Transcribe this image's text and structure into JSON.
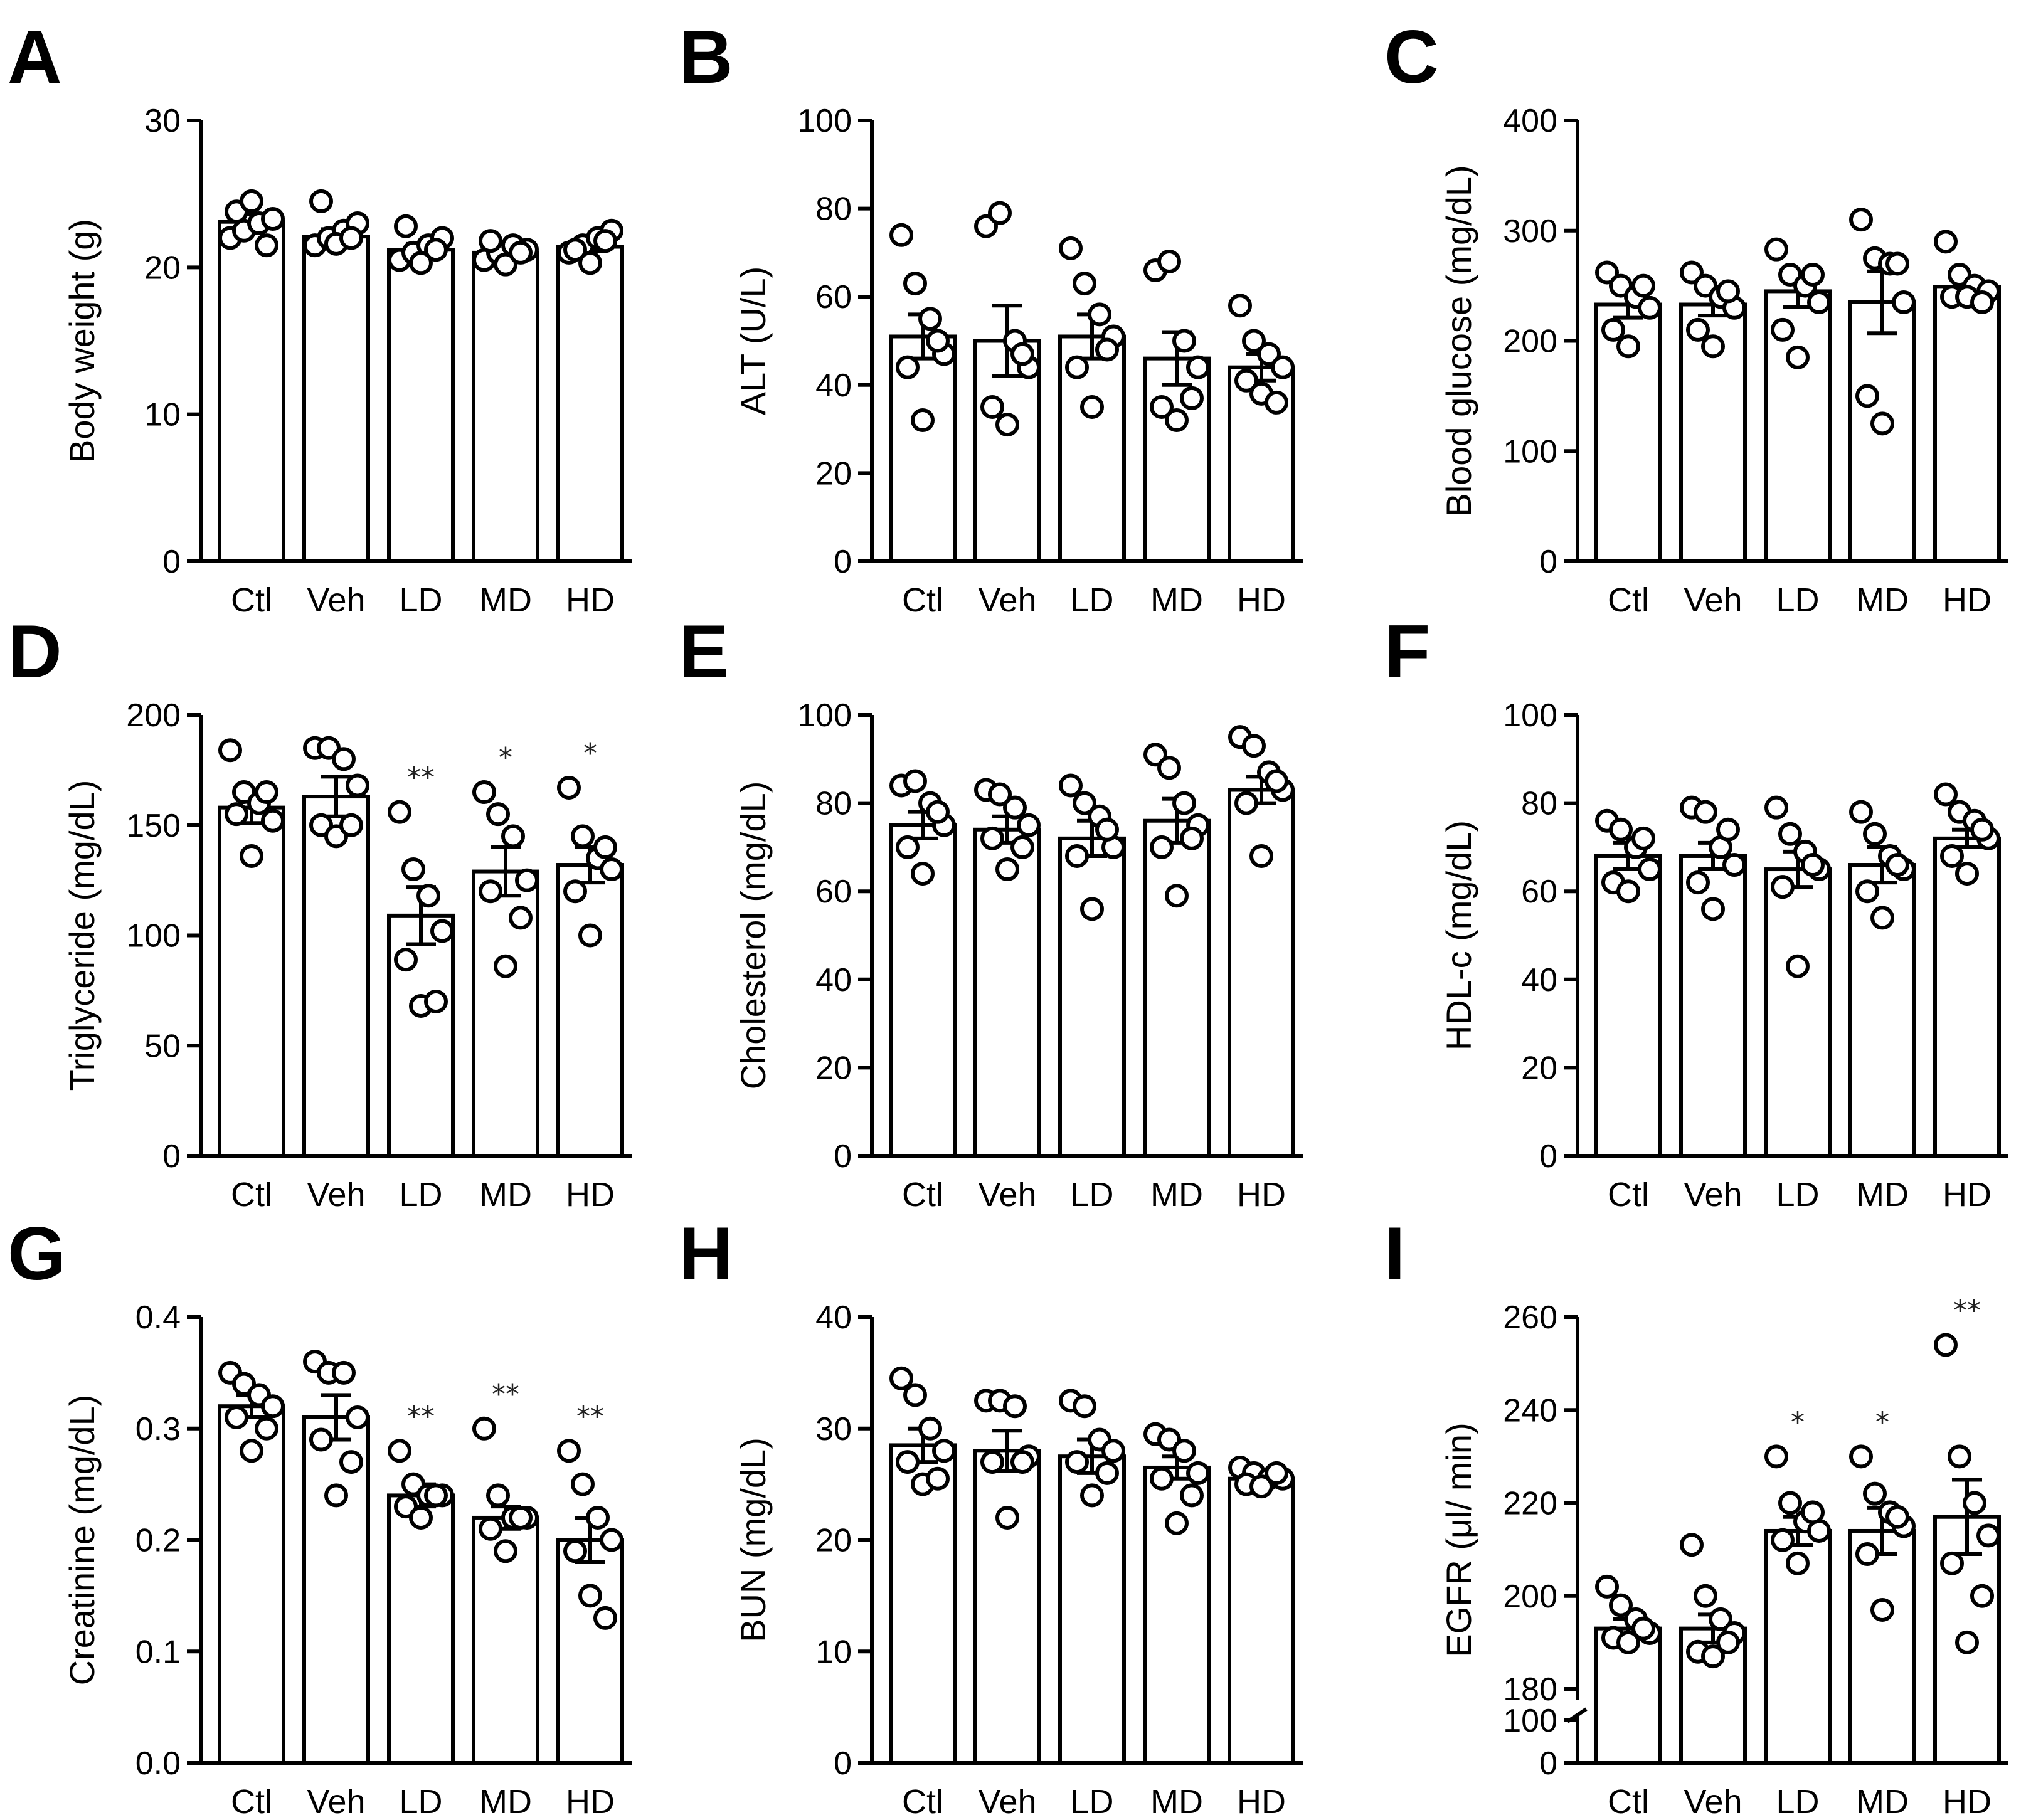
{
  "chart_data": [
    {
      "panel": "A",
      "type": "bar",
      "title": "",
      "categories": [
        "Ctl",
        "Veh",
        "LD",
        "MD",
        "HD"
      ],
      "ylabel": "Body weight (g)",
      "ylim": [
        0,
        30
      ],
      "yticks": [
        0,
        10,
        20,
        30
      ],
      "means": [
        23.1,
        22.1,
        21.2,
        21.0,
        21.4
      ],
      "sem": [
        0.5,
        0.5,
        0.4,
        0.3,
        0.3
      ],
      "points": [
        [
          22.0,
          22.5,
          23.0,
          23.3,
          23.8,
          24.5,
          21.5
        ],
        [
          21.5,
          22.0,
          22.5,
          23.0,
          24.5,
          21.6,
          22.0
        ],
        [
          20.5,
          21.0,
          21.5,
          22.0,
          22.8,
          20.3,
          21.2
        ],
        [
          20.5,
          21.0,
          21.5,
          21.2,
          21.8,
          20.2,
          21.0
        ],
        [
          21.0,
          21.5,
          22.0,
          22.5,
          21.2,
          20.3,
          21.8
        ]
      ],
      "annotations": [
        "",
        "",
        "",
        "",
        ""
      ]
    },
    {
      "panel": "B",
      "type": "bar",
      "title": "",
      "categories": [
        "Ctl",
        "Veh",
        "LD",
        "MD",
        "HD"
      ],
      "ylabel": "ALT (U/L)",
      "ylim": [
        0,
        100
      ],
      "yticks": [
        0,
        20,
        40,
        60,
        80,
        100
      ],
      "means": [
        51,
        50,
        51,
        46,
        44
      ],
      "sem": [
        5,
        8,
        5,
        6,
        3
      ],
      "points": [
        [
          74,
          63,
          55,
          47,
          44,
          32,
          50
        ],
        [
          76,
          79,
          50,
          44,
          35,
          31,
          47
        ],
        [
          71,
          63,
          56,
          51,
          44,
          35,
          48
        ],
        [
          66,
          68,
          50,
          44,
          35,
          32,
          37
        ],
        [
          58,
          50,
          47,
          44,
          41,
          38,
          36
        ]
      ],
      "annotations": [
        "",
        "",
        "",
        "",
        ""
      ]
    },
    {
      "panel": "C",
      "type": "bar",
      "title": "",
      "categories": [
        "Ctl",
        "Veh",
        "LD",
        "MD",
        "HD"
      ],
      "ylabel": "Blood glucose (mg/dL)",
      "ylim": [
        0,
        400
      ],
      "yticks": [
        0,
        100,
        200,
        300,
        400
      ],
      "means": [
        233,
        233,
        245,
        235,
        249
      ],
      "sem": [
        12,
        10,
        14,
        28,
        6
      ],
      "points": [
        [
          262,
          250,
          240,
          230,
          210,
          195,
          250
        ],
        [
          262,
          250,
          240,
          230,
          210,
          195,
          245
        ],
        [
          283,
          260,
          250,
          235,
          210,
          185,
          260
        ],
        [
          310,
          275,
          270,
          235,
          150,
          125,
          270
        ],
        [
          290,
          260,
          250,
          245,
          240,
          240,
          235
        ]
      ],
      "annotations": [
        "",
        "",
        "",
        "",
        ""
      ]
    },
    {
      "panel": "D",
      "type": "bar",
      "title": "",
      "categories": [
        "Ctl",
        "Veh",
        "LD",
        "MD",
        "HD"
      ],
      "ylabel": "Triglyceride (mg/dL)",
      "ylim": [
        0,
        200
      ],
      "yticks": [
        0,
        50,
        100,
        150,
        200
      ],
      "means": [
        158,
        163,
        109,
        129,
        132
      ],
      "sem": [
        7,
        9,
        13,
        11,
        8
      ],
      "points": [
        [
          184,
          165,
          160,
          152,
          155,
          136,
          165
        ],
        [
          185,
          185,
          180,
          168,
          150,
          145,
          150
        ],
        [
          156,
          130,
          118,
          102,
          89,
          68,
          70
        ],
        [
          165,
          155,
          145,
          125,
          120,
          86,
          108
        ],
        [
          167,
          145,
          135,
          130,
          120,
          100,
          140
        ]
      ],
      "annotations": [
        "",
        "",
        "**",
        "*",
        "*"
      ]
    },
    {
      "panel": "E",
      "type": "bar",
      "title": "",
      "categories": [
        "Ctl",
        "Veh",
        "LD",
        "MD",
        "HD"
      ],
      "ylabel": "Cholesterol (mg/dL)",
      "ylim": [
        0,
        100
      ],
      "yticks": [
        0,
        20,
        40,
        60,
        80,
        100
      ],
      "means": [
        75,
        74,
        72,
        76,
        83
      ],
      "sem": [
        3,
        3,
        4,
        5,
        3
      ],
      "points": [
        [
          84,
          85,
          80,
          75,
          70,
          64,
          78
        ],
        [
          83,
          82,
          79,
          75,
          72,
          65,
          70
        ],
        [
          84,
          80,
          77,
          70,
          68,
          56,
          74
        ],
        [
          91,
          88,
          80,
          75,
          70,
          59,
          72
        ],
        [
          95,
          93,
          87,
          83,
          80,
          68,
          85
        ]
      ],
      "annotations": [
        "",
        "",
        "",
        "",
        ""
      ]
    },
    {
      "panel": "F",
      "type": "bar",
      "title": "",
      "categories": [
        "Ctl",
        "Veh",
        "LD",
        "MD",
        "HD"
      ],
      "ylabel": "HDL-c (mg/dL)",
      "ylim": [
        0,
        100
      ],
      "yticks": [
        0,
        20,
        40,
        60,
        80,
        100
      ],
      "means": [
        68,
        68,
        65,
        66,
        72
      ],
      "sem": [
        3,
        3,
        4,
        4,
        2
      ],
      "points": [
        [
          76,
          74,
          70,
          65,
          62,
          60,
          72
        ],
        [
          79,
          78,
          70,
          66,
          62,
          56,
          74
        ],
        [
          79,
          73,
          69,
          65,
          61,
          43,
          66
        ],
        [
          78,
          73,
          68,
          65,
          60,
          54,
          66
        ],
        [
          82,
          78,
          76,
          72,
          68,
          64,
          74
        ]
      ],
      "annotations": [
        "",
        "",
        "",
        "",
        ""
      ]
    },
    {
      "panel": "G",
      "type": "bar",
      "title": "",
      "categories": [
        "Ctl",
        "Veh",
        "LD",
        "MD",
        "HD"
      ],
      "ylabel": "Creatinine (mg/dL)",
      "ylim": [
        0,
        0.4
      ],
      "yticks": [
        0.0,
        0.1,
        0.2,
        0.3,
        0.4
      ],
      "ytick_labels": [
        "0.0",
        "0.1",
        "0.2",
        "0.3",
        "0.4"
      ],
      "means": [
        0.32,
        0.31,
        0.24,
        0.22,
        0.2
      ],
      "sem": [
        0.01,
        0.02,
        0.01,
        0.01,
        0.02
      ],
      "points": [
        [
          0.35,
          0.34,
          0.33,
          0.32,
          0.31,
          0.28,
          0.3
        ],
        [
          0.36,
          0.35,
          0.35,
          0.31,
          0.29,
          0.24,
          0.27
        ],
        [
          0.28,
          0.25,
          0.24,
          0.24,
          0.23,
          0.22,
          0.24
        ],
        [
          0.3,
          0.24,
          0.22,
          0.22,
          0.21,
          0.19,
          0.22
        ],
        [
          0.28,
          0.25,
          0.22,
          0.2,
          0.19,
          0.15,
          0.13
        ]
      ],
      "annotations": [
        "",
        "",
        "**",
        "**",
        "**"
      ]
    },
    {
      "panel": "H",
      "type": "bar",
      "title": "",
      "categories": [
        "Ctl",
        "Veh",
        "LD",
        "MD",
        "HD"
      ],
      "ylabel": "BUN (mg/dL)",
      "ylim": [
        0,
        40
      ],
      "yticks": [
        0,
        10,
        20,
        30,
        40
      ],
      "means": [
        28.5,
        28.0,
        27.5,
        26.5,
        25.5
      ],
      "sem": [
        1.5,
        1.8,
        1.5,
        1.0,
        0.4
      ],
      "points": [
        [
          34.5,
          33.0,
          30.0,
          28.0,
          27.0,
          25.0,
          25.5
        ],
        [
          32.5,
          32.5,
          32.0,
          27.5,
          27.0,
          22.0,
          27.0
        ],
        [
          32.5,
          32.0,
          29.0,
          28.0,
          27.0,
          24.0,
          26.0
        ],
        [
          29.5,
          29.0,
          28.0,
          26.0,
          25.5,
          21.5,
          24.0
        ],
        [
          26.5,
          26.0,
          25.5,
          25.5,
          25.0,
          24.8,
          26.0
        ]
      ],
      "annotations": [
        "",
        "",
        "",
        "",
        ""
      ]
    },
    {
      "panel": "I",
      "type": "bar",
      "title": "",
      "categories": [
        "Ctl",
        "Veh",
        "LD",
        "MD",
        "HD"
      ],
      "ylabel": "EGFR (μl/ min)",
      "ylim": [
        0,
        260
      ],
      "axis_break": [
        100,
        180
      ],
      "yticks": [
        0,
        100,
        180,
        200,
        220,
        240,
        260
      ],
      "means": [
        193,
        193,
        214,
        214,
        217
      ],
      "sem": [
        2,
        3,
        3,
        5,
        8
      ],
      "points": [
        [
          202,
          198,
          195,
          192,
          191,
          190,
          193
        ],
        [
          211,
          200,
          195,
          192,
          188,
          187,
          190
        ],
        [
          230,
          220,
          216,
          214,
          212,
          207,
          218
        ],
        [
          230,
          222,
          218,
          215,
          209,
          197,
          217
        ],
        [
          254,
          230,
          220,
          213,
          207,
          190,
          200
        ]
      ],
      "annotations": [
        "",
        "",
        "*",
        "*",
        "**"
      ]
    }
  ]
}
